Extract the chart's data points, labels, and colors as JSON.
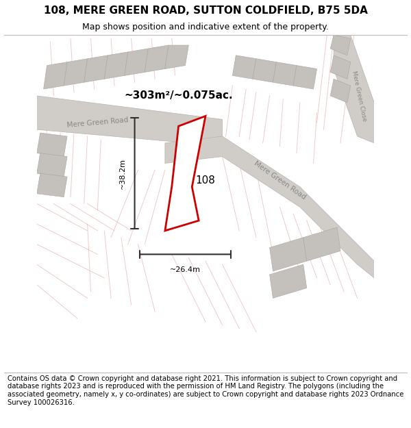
{
  "title_line1": "108, MERE GREEN ROAD, SUTTON COLDFIELD, B75 5DA",
  "title_line2": "Map shows position and indicative extent of the property.",
  "footer_text": "Contains OS data © Crown copyright and database right 2021. This information is subject to Crown copyright and database rights 2023 and is reproduced with the permission of HM Land Registry. The polygons (including the associated geometry, namely x, y co-ordinates) are subject to Crown copyright and database rights 2023 Ordnance Survey 100026316.",
  "map_bg": "#f0ebe8",
  "road_gray": "#d0ccc8",
  "road_edge": "#b8b4b0",
  "block_gray": "#c4c0bc",
  "block_edge": "#a8a4a0",
  "faint_line_color": "#e8b0b0",
  "plot_color": "#cc0000",
  "plot_fill": "#ffffff",
  "measure_color": "#303030",
  "road_label_color": "#888888",
  "title_fontsize": 11,
  "subtitle_fontsize": 9,
  "footer_fontsize": 7.2,
  "title_line1_text": "108, MERE GREEN ROAD, SUTTON COLDFIELD, B75 5DA",
  "title_line2_text": "Map shows position and indicative extent of the property.",
  "area_label": "~303m²/~0.075ac.",
  "height_label": "~38.2m",
  "width_label": "~26.4m",
  "label_108": "108",
  "road_label_upper": "Mere Green Road",
  "road_label_main": "Mere Green Road",
  "road_label_close": "Mere Green Close"
}
